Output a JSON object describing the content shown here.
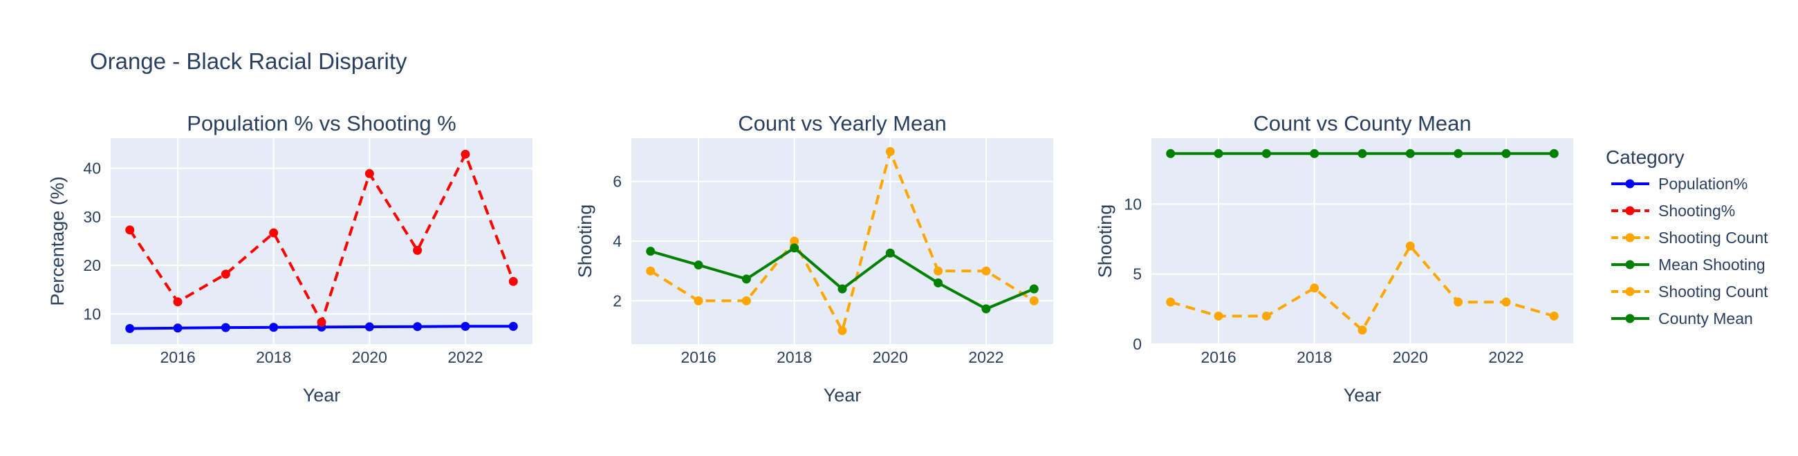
{
  "figure": {
    "title": "Orange - Black Racial Disparity"
  },
  "chart_data": [
    {
      "type": "line",
      "title": "Population % vs Shooting %",
      "xlabel": "Year",
      "ylabel": "Percentage (%)",
      "xlim": [
        2014.6,
        2023.4
      ],
      "ylim": [
        3.8,
        46.2
      ],
      "xticks": [
        2016,
        2018,
        2020,
        2022
      ],
      "yticks": [
        10,
        20,
        30,
        40
      ],
      "grid": true,
      "series": [
        {
          "name": "Population%",
          "color": "#0000ff",
          "dash": "solid",
          "x": [
            2015,
            2016,
            2017,
            2018,
            2019,
            2020,
            2021,
            2022,
            2023
          ],
          "y": [
            7.0,
            7.1,
            7.2,
            7.25,
            7.3,
            7.35,
            7.4,
            7.45,
            7.45
          ]
        },
        {
          "name": "Shooting%",
          "color": "#ff0000",
          "dash": "dash",
          "x": [
            2015,
            2016,
            2017,
            2018,
            2019,
            2020,
            2021,
            2022,
            2023
          ],
          "y": [
            27.3,
            12.5,
            18.2,
            26.7,
            8.3,
            38.9,
            23.1,
            42.9,
            16.7
          ]
        }
      ]
    },
    {
      "type": "line",
      "title": "Count vs Yearly Mean",
      "xlabel": "Year",
      "ylabel": "Shooting",
      "xlim": [
        2014.6,
        2023.4
      ],
      "ylim": [
        0.55,
        7.45
      ],
      "xticks": [
        2016,
        2018,
        2020,
        2022
      ],
      "yticks": [
        2,
        4,
        6
      ],
      "grid": true,
      "series": [
        {
          "name": "Shooting Count",
          "color": "#ffa500",
          "dash": "dash",
          "x": [
            2015,
            2016,
            2017,
            2018,
            2019,
            2020,
            2021,
            2022,
            2023
          ],
          "y": [
            3,
            2,
            2,
            4,
            1,
            7,
            3,
            3,
            2
          ]
        },
        {
          "name": "Mean Shooting",
          "color": "#008000",
          "dash": "solid",
          "x": [
            2015,
            2016,
            2017,
            2018,
            2019,
            2020,
            2021,
            2022,
            2023
          ],
          "y": [
            3.66,
            3.2,
            2.73,
            3.77,
            2.4,
            3.6,
            2.6,
            1.73,
            2.4
          ]
        }
      ]
    },
    {
      "type": "line",
      "title": "Count vs County Mean",
      "xlabel": "Year",
      "ylabel": "Shooting",
      "xlim": [
        2014.6,
        2023.4
      ],
      "ylim": [
        0,
        14.7
      ],
      "xticks": [
        2016,
        2018,
        2020,
        2022
      ],
      "yticks": [
        0,
        5,
        10
      ],
      "grid": true,
      "series": [
        {
          "name": "Shooting Count",
          "color": "#ffa500",
          "dash": "dash",
          "x": [
            2015,
            2016,
            2017,
            2018,
            2019,
            2020,
            2021,
            2022,
            2023
          ],
          "y": [
            3,
            2,
            2,
            4,
            1,
            7,
            3,
            3,
            2
          ]
        },
        {
          "name": "County Mean",
          "color": "#008000",
          "dash": "solid",
          "x": [
            2015,
            2016,
            2017,
            2018,
            2019,
            2020,
            2021,
            2022,
            2023
          ],
          "y": [
            13.6,
            13.6,
            13.6,
            13.6,
            13.6,
            13.6,
            13.6,
            13.6,
            13.6
          ]
        }
      ]
    }
  ],
  "legend": {
    "title": "Category",
    "placement": "right",
    "items": [
      {
        "label": "Population%",
        "color": "#0000ff",
        "dash": "solid"
      },
      {
        "label": "Shooting%",
        "color": "#ff0000",
        "dash": "dash"
      },
      {
        "label": "Shooting Count",
        "color": "#ffa500",
        "dash": "dash"
      },
      {
        "label": "Mean Shooting",
        "color": "#008000",
        "dash": "solid"
      },
      {
        "label": "Shooting Count",
        "color": "#ffa500",
        "dash": "dash"
      },
      {
        "label": "County Mean",
        "color": "#008000",
        "dash": "solid"
      }
    ]
  }
}
